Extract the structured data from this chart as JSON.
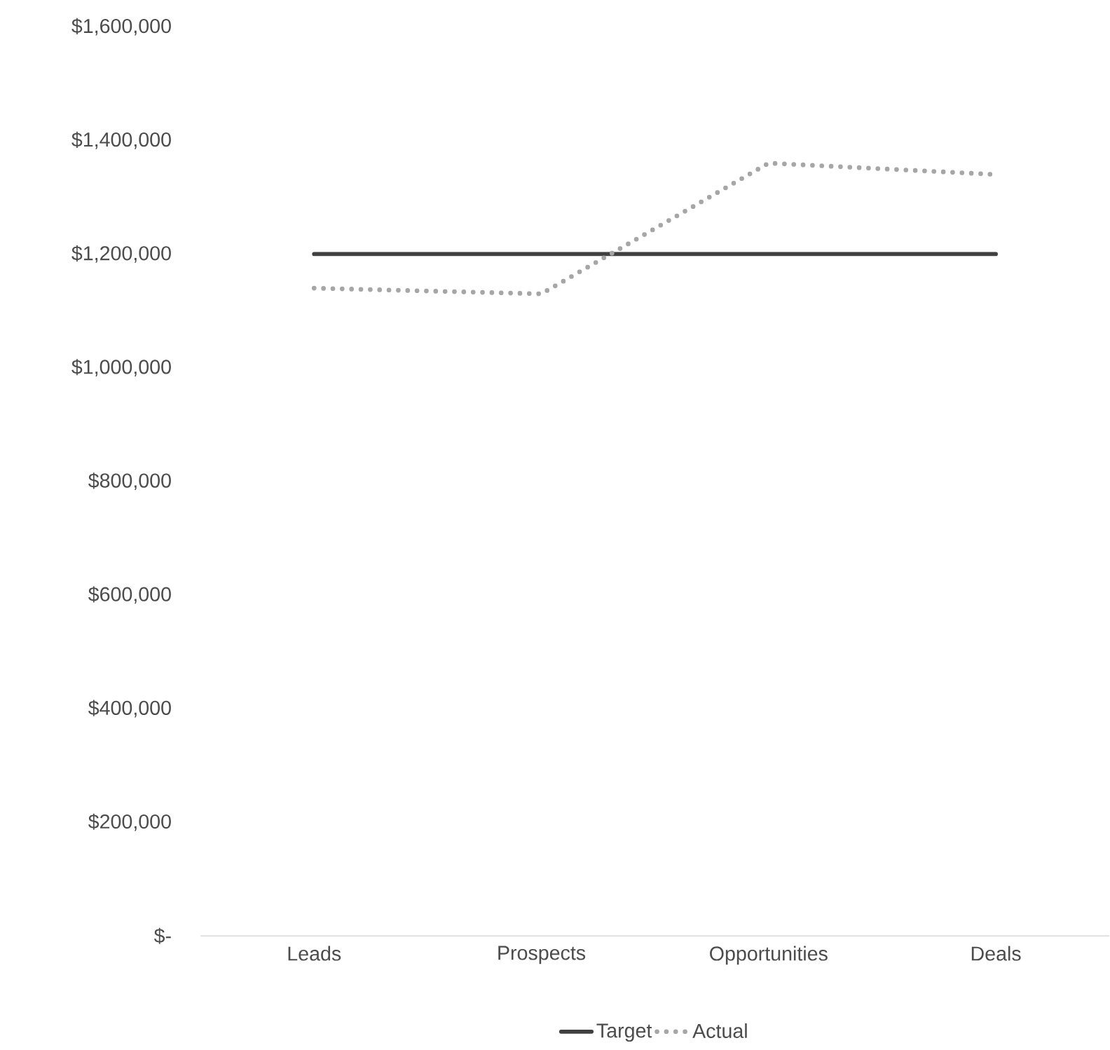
{
  "chart_data": {
    "type": "line",
    "categories": [
      "Leads",
      "Prospects",
      "Opportunities",
      "Deals"
    ],
    "series": [
      {
        "name": "Target",
        "color": "#404040",
        "line_style": "solid",
        "values": [
          1200000,
          1200000,
          1200000,
          1200000
        ]
      },
      {
        "name": "Actual",
        "color": "#a6a6a6",
        "line_style": "dotted",
        "values": [
          1140000,
          1130000,
          1360000,
          1340000
        ]
      }
    ],
    "ylim": [
      0,
      1600000
    ],
    "yticks": [
      {
        "value": 0,
        "label": "$-"
      },
      {
        "value": 200000,
        "label": "$200,000"
      },
      {
        "value": 400000,
        "label": "$400,000"
      },
      {
        "value": 600000,
        "label": "$600,000"
      },
      {
        "value": 800000,
        "label": "$800,000"
      },
      {
        "value": 1000000,
        "label": "$1,000,000"
      },
      {
        "value": 1200000,
        "label": "$1,200,000"
      },
      {
        "value": 1400000,
        "label": "$1,400,000"
      },
      {
        "value": 1600000,
        "label": "$1,600,000"
      }
    ],
    "grid": false,
    "legend": "bottom",
    "marker": "none"
  }
}
